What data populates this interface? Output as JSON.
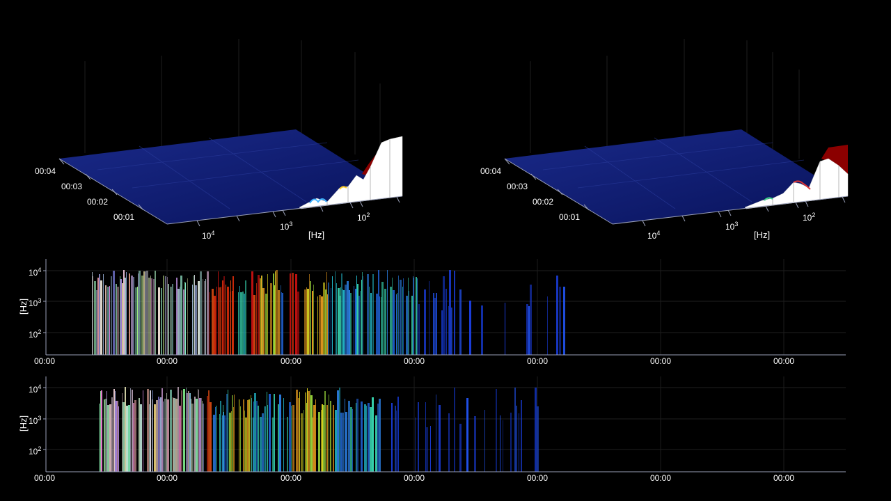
{
  "colors": {
    "background": "#000000",
    "surface_blue": "#0b1a7a",
    "peak_white": "#ffffff",
    "peak_red": "#8b0000",
    "axis_line": "#9aa0b8",
    "grid": "#2a2a2a"
  },
  "chart_data": [
    {
      "type": "surface3d",
      "title": "",
      "axis_x_label": "[Hz]",
      "axis_x_ticks": [
        {
          "base": "10",
          "exp": "4"
        },
        {
          "base": "10",
          "exp": "3"
        },
        {
          "base": "10",
          "exp": "2"
        }
      ],
      "axis_y_ticks": [
        "00:04",
        "00:03",
        "00:02",
        "00:01"
      ],
      "colormap": "jet-like (blue low, red high, white peaks)"
    },
    {
      "type": "surface3d",
      "title": "",
      "axis_x_label": "[Hz]",
      "axis_x_ticks": [
        {
          "base": "10",
          "exp": "4"
        },
        {
          "base": "10",
          "exp": "3"
        },
        {
          "base": "10",
          "exp": "2"
        }
      ],
      "axis_y_ticks": [
        "00:04",
        "00:03",
        "00:02",
        "00:01"
      ],
      "colormap": "jet-like (blue low, red high, white peaks)"
    },
    {
      "type": "heatmap",
      "title": "",
      "ylabel": "[Hz]",
      "y_ticks": [
        {
          "base": "10",
          "exp": "4"
        },
        {
          "base": "10",
          "exp": "3"
        },
        {
          "base": "10",
          "exp": "2"
        }
      ],
      "x_ticks": [
        "00:00",
        "00:00",
        "00:00",
        "00:00",
        "00:00",
        "00:00",
        "00:00"
      ],
      "yscale": "log"
    },
    {
      "type": "heatmap",
      "title": "",
      "ylabel": "[Hz]",
      "y_ticks": [
        {
          "base": "10",
          "exp": "4"
        },
        {
          "base": "10",
          "exp": "3"
        },
        {
          "base": "10",
          "exp": "2"
        }
      ],
      "x_ticks": [
        "00:00",
        "00:00",
        "00:00",
        "00:00",
        "00:00",
        "00:00",
        "00:00"
      ],
      "yscale": "log"
    }
  ]
}
